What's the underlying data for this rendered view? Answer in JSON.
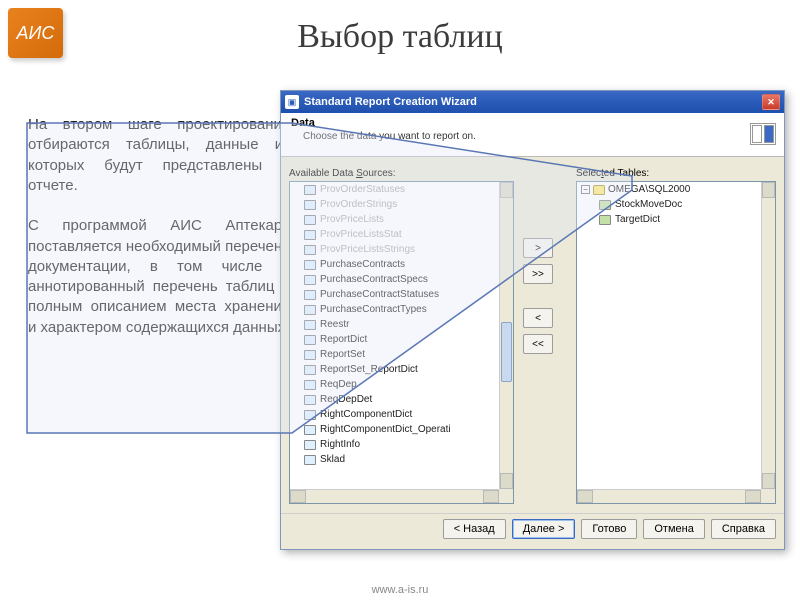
{
  "slide": {
    "logo_text": "АИС",
    "logo_sub": " ",
    "title": "Выбор таблиц",
    "body_para1": "На втором шаге проектирования отбираются таблицы, данные из которых будут представлены в отчете.",
    "body_para2": "С программой АИС Аптекарь поставляется необходимый перечень документации, в том числе и аннотированный перечень таблиц с полным описанием места хранения и характером содержащихся данных.",
    "footer": "www.a-is.ru"
  },
  "window": {
    "title": "Standard Report Creation Wizard",
    "header_title": "Data",
    "header_sub": "Choose the data you want to report on.",
    "available_label": "Available Data Sources:",
    "selected_label": "Selected Tables:",
    "available_list": [
      {
        "label": "ProvOrderStatuses",
        "faded": true
      },
      {
        "label": "ProvOrderStrings",
        "faded": true
      },
      {
        "label": "ProvPriceLists",
        "faded": true
      },
      {
        "label": "ProvPriceListsStat",
        "faded": true
      },
      {
        "label": "ProvPriceListsStrings",
        "faded": true
      },
      {
        "label": "PurchaseContracts",
        "faded": false
      },
      {
        "label": "PurchaseContractSpecs",
        "faded": false
      },
      {
        "label": "PurchaseContractStatuses",
        "faded": false
      },
      {
        "label": "PurchaseContractTypes",
        "faded": false
      },
      {
        "label": "Reestr",
        "faded": false
      },
      {
        "label": "ReportDict",
        "faded": false
      },
      {
        "label": "ReportSet",
        "faded": false
      },
      {
        "label": "ReportSet_ReportDict",
        "faded": false
      },
      {
        "label": "ReqDep",
        "faded": false
      },
      {
        "label": "ReqDepDet",
        "faded": false
      },
      {
        "label": "RightComponentDict",
        "faded": false
      },
      {
        "label": "RightComponentDict_Operati",
        "faded": false
      },
      {
        "label": "RightInfo",
        "faded": false
      },
      {
        "label": "Sklad",
        "faded": false
      }
    ],
    "selected_tree": {
      "root": "OMEGA\\SQL2000",
      "items": [
        "StockMoveDoc",
        "TargetDict"
      ]
    },
    "mid_buttons": {
      "add": ">",
      "add_all": ">>",
      "remove": "<",
      "remove_all": "<<"
    },
    "buttons": {
      "back": "< Назад",
      "next": "Далее >",
      "finish": "Готово",
      "cancel": "Отмена",
      "help": "Справка"
    }
  },
  "colors": {
    "titlebar_start": "#3b6ac5",
    "window_bg": "#ece9d8",
    "faded_text": "#a9a9a9",
    "callout_fill": "#e2e8f5",
    "callout_border": "#5a77b5"
  }
}
